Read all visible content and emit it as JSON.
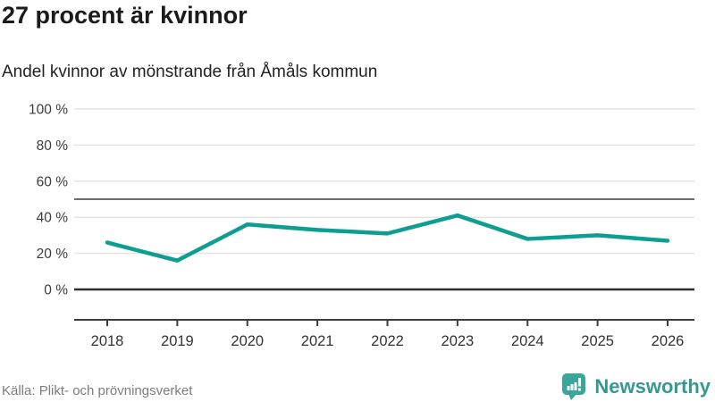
{
  "header": {
    "title": "27 procent är kvinnor",
    "subtitle": "Andel kvinnor av mönstrande från Åmåls kommun"
  },
  "chart_data": {
    "type": "line",
    "categories": [
      "2018",
      "2019",
      "2020",
      "2021",
      "2022",
      "2023",
      "2024",
      "2025",
      "2026"
    ],
    "series": [
      {
        "name": "Andel kvinnor av mönstrande från Åmåls kommun",
        "values": [
          26,
          16,
          36,
          33,
          31,
          41,
          28,
          30,
          27
        ]
      }
    ],
    "unit": "%",
    "title": "27 procent är kvinnor",
    "subtitle": "Andel kvinnor av mönstrande från Åmåls kommun",
    "xlabel": "",
    "ylabel": "",
    "ylim": [
      0,
      100
    ],
    "yticks": [
      0,
      20,
      40,
      60,
      80,
      100
    ],
    "ytick_labels": [
      "0 %",
      "20 %",
      "40 %",
      "60 %",
      "80 %",
      "100 %"
    ],
    "reference_line": 50,
    "grid": true,
    "legend": "none",
    "latest_value_highlight": "27"
  },
  "footer": {
    "source": "Källa: Plikt- och prövningsverket",
    "brand": "Newsworthy"
  },
  "colors": {
    "line": "#0d9e91",
    "grid": "#e4e4e4",
    "reference_line": "#6f6f6f",
    "zero_line": "#2e2e2e",
    "axis": "#3d3d3d",
    "tick_text": "#333333",
    "ytick_text": "#3c3c3c",
    "brand_text": "#35998f",
    "brand_icon": "#3aa59a",
    "source_text": "#7d7d7d"
  }
}
